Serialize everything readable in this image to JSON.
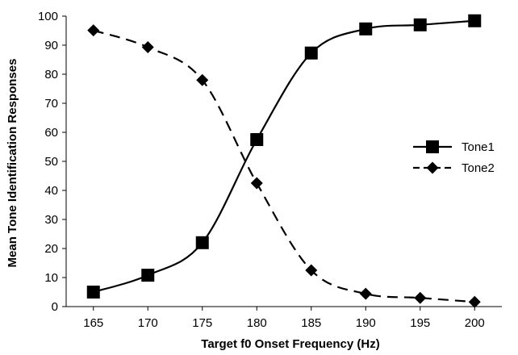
{
  "chart_data": {
    "type": "line",
    "title": "",
    "xlabel": "Target f0 Onset Frequency (Hz)",
    "ylabel": "Mean Tone Identification Responses",
    "x": [
      165,
      170,
      175,
      180,
      185,
      190,
      195,
      200
    ],
    "xlim": [
      162.5,
      202.5
    ],
    "ylim": [
      0,
      100
    ],
    "yticks": [
      0,
      10,
      20,
      30,
      40,
      50,
      60,
      70,
      80,
      90,
      100
    ],
    "grid": false,
    "legend_position": "right",
    "series": [
      {
        "name": "Tone1",
        "marker": "square",
        "line_style": "solid",
        "color": "#000000",
        "values": [
          5,
          10.8,
          22,
          57.5,
          87.3,
          95.6,
          97,
          98.4
        ]
      },
      {
        "name": "Tone2",
        "marker": "diamond",
        "line_style": "dashed",
        "color": "#000000",
        "values": [
          95.1,
          89.3,
          78,
          42.5,
          12.5,
          4.4,
          3,
          1.6
        ]
      }
    ]
  }
}
